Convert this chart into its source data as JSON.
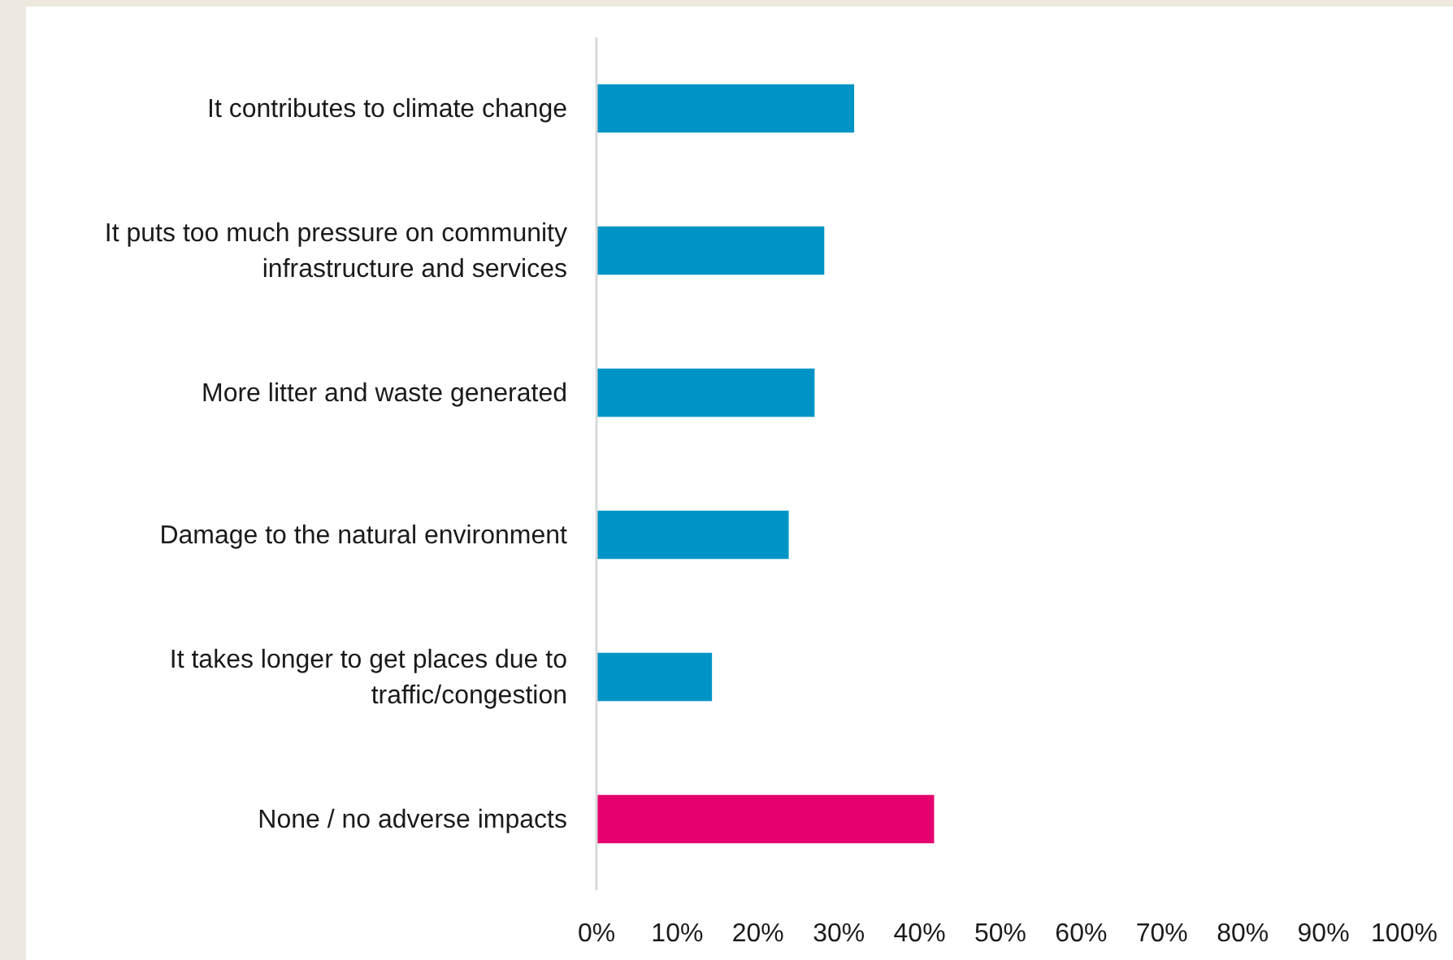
{
  "chart_data": {
    "type": "bar",
    "orientation": "horizontal",
    "categories": [
      "It contributes to climate change",
      "It puts too much pressure on community infrastructure and services",
      "More litter and waste generated",
      "Damage to the natural environment",
      "It takes longer to get places due to traffic/congestion",
      "None / no adverse impacts"
    ],
    "values": [
      31.9,
      28.2,
      27.0,
      23.8,
      14.3,
      41.8
    ],
    "colors": [
      "#0094c6",
      "#0094c6",
      "#0094c6",
      "#0094c6",
      "#0094c6",
      "#e5006d"
    ],
    "xlim": [
      0,
      100
    ],
    "xticks": [
      {
        "value": 0,
        "label": "0%"
      },
      {
        "value": 10,
        "label": "10%"
      },
      {
        "value": 20,
        "label": "20%"
      },
      {
        "value": 30,
        "label": "30%"
      },
      {
        "value": 40,
        "label": "40%"
      },
      {
        "value": 50,
        "label": "50%"
      },
      {
        "value": 60,
        "label": "60%"
      },
      {
        "value": 70,
        "label": "70%"
      },
      {
        "value": 80,
        "label": "80%"
      },
      {
        "value": 90,
        "label": "90%"
      },
      {
        "value": 100,
        "label": "100%"
      }
    ],
    "grid": false
  }
}
